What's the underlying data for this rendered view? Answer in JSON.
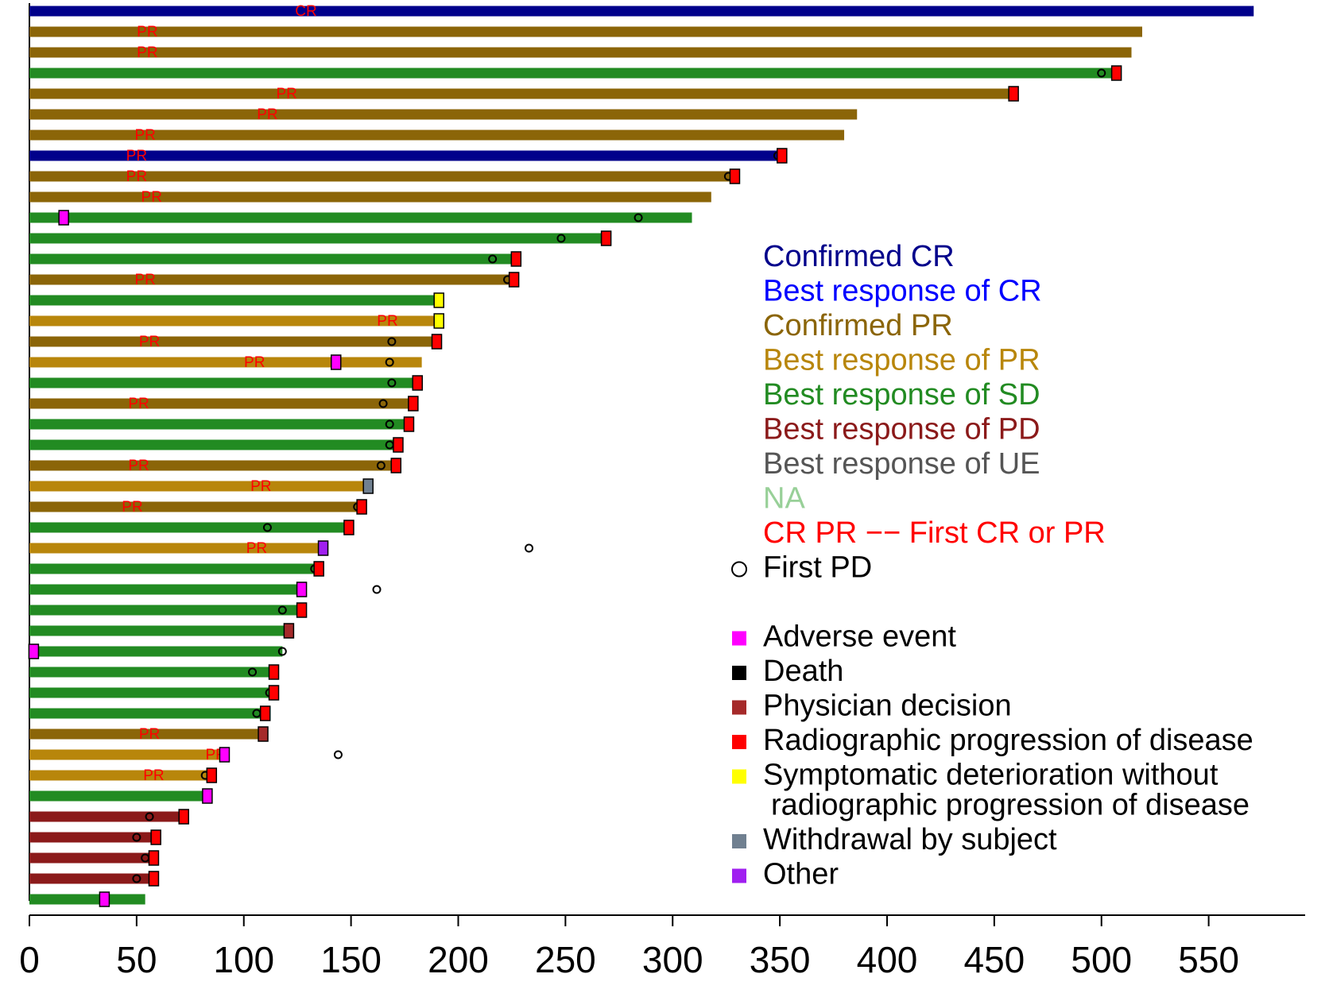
{
  "chart_data": {
    "type": "swimmer",
    "xlim": [
      0,
      595
    ],
    "xticks": [
      0,
      50,
      100,
      150,
      200,
      250,
      300,
      350,
      400,
      450,
      500,
      550
    ],
    "responses": [
      {
        "name": "Confirmed CR",
        "color": "#00008B"
      },
      {
        "name": "Best response of CR",
        "color": "#0000FF"
      },
      {
        "name": "Confirmed PR",
        "color": "#8B6508"
      },
      {
        "name": "Best response of PR",
        "color": "#B8860B"
      },
      {
        "name": "Best response of SD",
        "color": "#228B22"
      },
      {
        "name": "Best response of PD",
        "color": "#8B1A1A"
      },
      {
        "name": "Best response of UE",
        "color": "#555555"
      },
      {
        "name": "NA",
        "color": "#98D098"
      }
    ],
    "first_response_legend": {
      "text": "CR PR −− First CR or PR",
      "color": "#FF0000"
    },
    "first_pd_legend": "First PD",
    "end_reasons": [
      {
        "lines": [
          "Adverse event"
        ],
        "color": "#FF00FF"
      },
      {
        "lines": [
          "Death"
        ],
        "color": "#000000"
      },
      {
        "lines": [
          "Physician decision"
        ],
        "color": "#A52A2A"
      },
      {
        "lines": [
          "Radiographic progression of disease"
        ],
        "color": "#FF0000"
      },
      {
        "lines": [
          "Symptomatic deterioration without",
          "radiographic progression of disease"
        ],
        "color": "#FFFF00"
      },
      {
        "lines": [
          "Withdrawal by subject"
        ],
        "color": "#708090"
      },
      {
        "lines": [
          "Other"
        ],
        "color": "#A020F0"
      }
    ],
    "subjects": [
      {
        "response": 0,
        "duration": 571,
        "first_response": 129,
        "label": "CR"
      },
      {
        "response": 2,
        "duration": 519,
        "first_response": 55,
        "label": "PR"
      },
      {
        "response": 2,
        "duration": 514,
        "first_response": 55,
        "label": "PR"
      },
      {
        "response": 4,
        "duration": 507,
        "end_reason": 3,
        "end_time": 507,
        "first_pd": 500
      },
      {
        "response": 2,
        "duration": 459,
        "end_reason": 3,
        "end_time": 459,
        "first_response": 120,
        "label": "PR"
      },
      {
        "response": 2,
        "duration": 386,
        "first_response": 111,
        "label": "PR"
      },
      {
        "response": 2,
        "duration": 380,
        "first_response": 54,
        "label": "PR"
      },
      {
        "response": 0,
        "duration": 351,
        "end_reason": 3,
        "end_time": 351,
        "first_pd": 349,
        "first_response": 50,
        "label": "PR"
      },
      {
        "response": 2,
        "duration": 329,
        "end_reason": 3,
        "end_time": 329,
        "first_pd": 326,
        "first_response": 50,
        "label": "PR"
      },
      {
        "response": 2,
        "duration": 318,
        "first_response": 57,
        "label": "PR"
      },
      {
        "response": 4,
        "duration": 309,
        "end_reason": 0,
        "end_time": 16,
        "first_pd": 284
      },
      {
        "response": 4,
        "duration": 269,
        "end_reason": 3,
        "end_time": 269,
        "first_pd": 248
      },
      {
        "response": 4,
        "duration": 227,
        "end_reason": 3,
        "end_time": 227,
        "first_pd": 216
      },
      {
        "response": 2,
        "duration": 226,
        "end_reason": 3,
        "end_time": 226,
        "first_pd": 223,
        "first_response": 54,
        "label": "PR"
      },
      {
        "response": 4,
        "duration": 191,
        "end_reason": 4,
        "end_time": 191
      },
      {
        "response": 3,
        "duration": 191,
        "end_reason": 4,
        "end_time": 191,
        "first_response": 167,
        "label": "PR"
      },
      {
        "response": 2,
        "duration": 190,
        "end_reason": 3,
        "end_time": 190,
        "first_pd": 169,
        "first_response": 56,
        "label": "PR"
      },
      {
        "response": 3,
        "duration": 183,
        "end_reason": 0,
        "end_time": 143,
        "first_pd": 168,
        "first_response": 105,
        "label": "PR"
      },
      {
        "response": 4,
        "duration": 181,
        "end_reason": 3,
        "end_time": 181,
        "first_pd": 169
      },
      {
        "response": 2,
        "duration": 179,
        "end_reason": 3,
        "end_time": 179,
        "first_pd": 165,
        "first_response": 51,
        "label": "PR"
      },
      {
        "response": 4,
        "duration": 177,
        "end_reason": 3,
        "end_time": 177,
        "first_pd": 168
      },
      {
        "response": 4,
        "duration": 172,
        "end_reason": 3,
        "end_time": 172,
        "first_pd": 168
      },
      {
        "response": 2,
        "duration": 171,
        "end_reason": 3,
        "end_time": 171,
        "first_pd": 164,
        "first_response": 51,
        "label": "PR"
      },
      {
        "response": 3,
        "duration": 158,
        "end_reason": 5,
        "end_time": 158,
        "first_response": 108,
        "label": "PR"
      },
      {
        "response": 2,
        "duration": 155,
        "end_reason": 3,
        "end_time": 155,
        "first_pd": 153,
        "first_response": 48,
        "label": "PR"
      },
      {
        "response": 4,
        "duration": 149,
        "end_reason": 3,
        "end_time": 149,
        "first_pd": 111
      },
      {
        "response": 3,
        "duration": 137,
        "end_reason": 6,
        "end_time": 137,
        "first_pd": 233,
        "first_response": 106,
        "label": "PR"
      },
      {
        "response": 4,
        "duration": 135,
        "end_reason": 3,
        "end_time": 135,
        "first_pd": 133
      },
      {
        "response": 4,
        "duration": 127,
        "end_reason": 0,
        "end_time": 127,
        "first_pd": 162
      },
      {
        "response": 4,
        "duration": 127,
        "end_reason": 3,
        "end_time": 127,
        "first_pd": 118
      },
      {
        "response": 4,
        "duration": 121,
        "end_reason": 2,
        "end_time": 121
      },
      {
        "response": 4,
        "duration": 118,
        "end_reason": 0,
        "end_time": 2,
        "first_pd": 118
      },
      {
        "response": 4,
        "duration": 114,
        "end_reason": 3,
        "end_time": 114,
        "first_pd": 104
      },
      {
        "response": 4,
        "duration": 114,
        "end_reason": 3,
        "end_time": 114,
        "first_pd": 112
      },
      {
        "response": 4,
        "duration": 110,
        "end_reason": 3,
        "end_time": 110,
        "first_pd": 106
      },
      {
        "response": 2,
        "duration": 109,
        "end_reason": 2,
        "end_time": 109,
        "first_response": 56,
        "label": "PR"
      },
      {
        "response": 3,
        "duration": 91,
        "end_reason": 0,
        "end_time": 91,
        "first_pd": 144,
        "first_response": 87,
        "label": "PR"
      },
      {
        "response": 3,
        "duration": 85,
        "end_reason": 3,
        "end_time": 85,
        "first_pd": 82,
        "first_response": 58,
        "label": "PR"
      },
      {
        "response": 4,
        "duration": 83,
        "end_reason": 0,
        "end_time": 83
      },
      {
        "response": 5,
        "duration": 72,
        "end_reason": 3,
        "end_time": 72,
        "first_pd": 56
      },
      {
        "response": 5,
        "duration": 59,
        "end_reason": 3,
        "end_time": 59,
        "first_pd": 50
      },
      {
        "response": 5,
        "duration": 58,
        "end_reason": 3,
        "end_time": 58,
        "first_pd": 54
      },
      {
        "response": 5,
        "duration": 58,
        "end_reason": 3,
        "end_time": 58,
        "first_pd": 50
      },
      {
        "response": 4,
        "duration": 54,
        "end_reason": 0,
        "end_time": 35
      }
    ]
  }
}
